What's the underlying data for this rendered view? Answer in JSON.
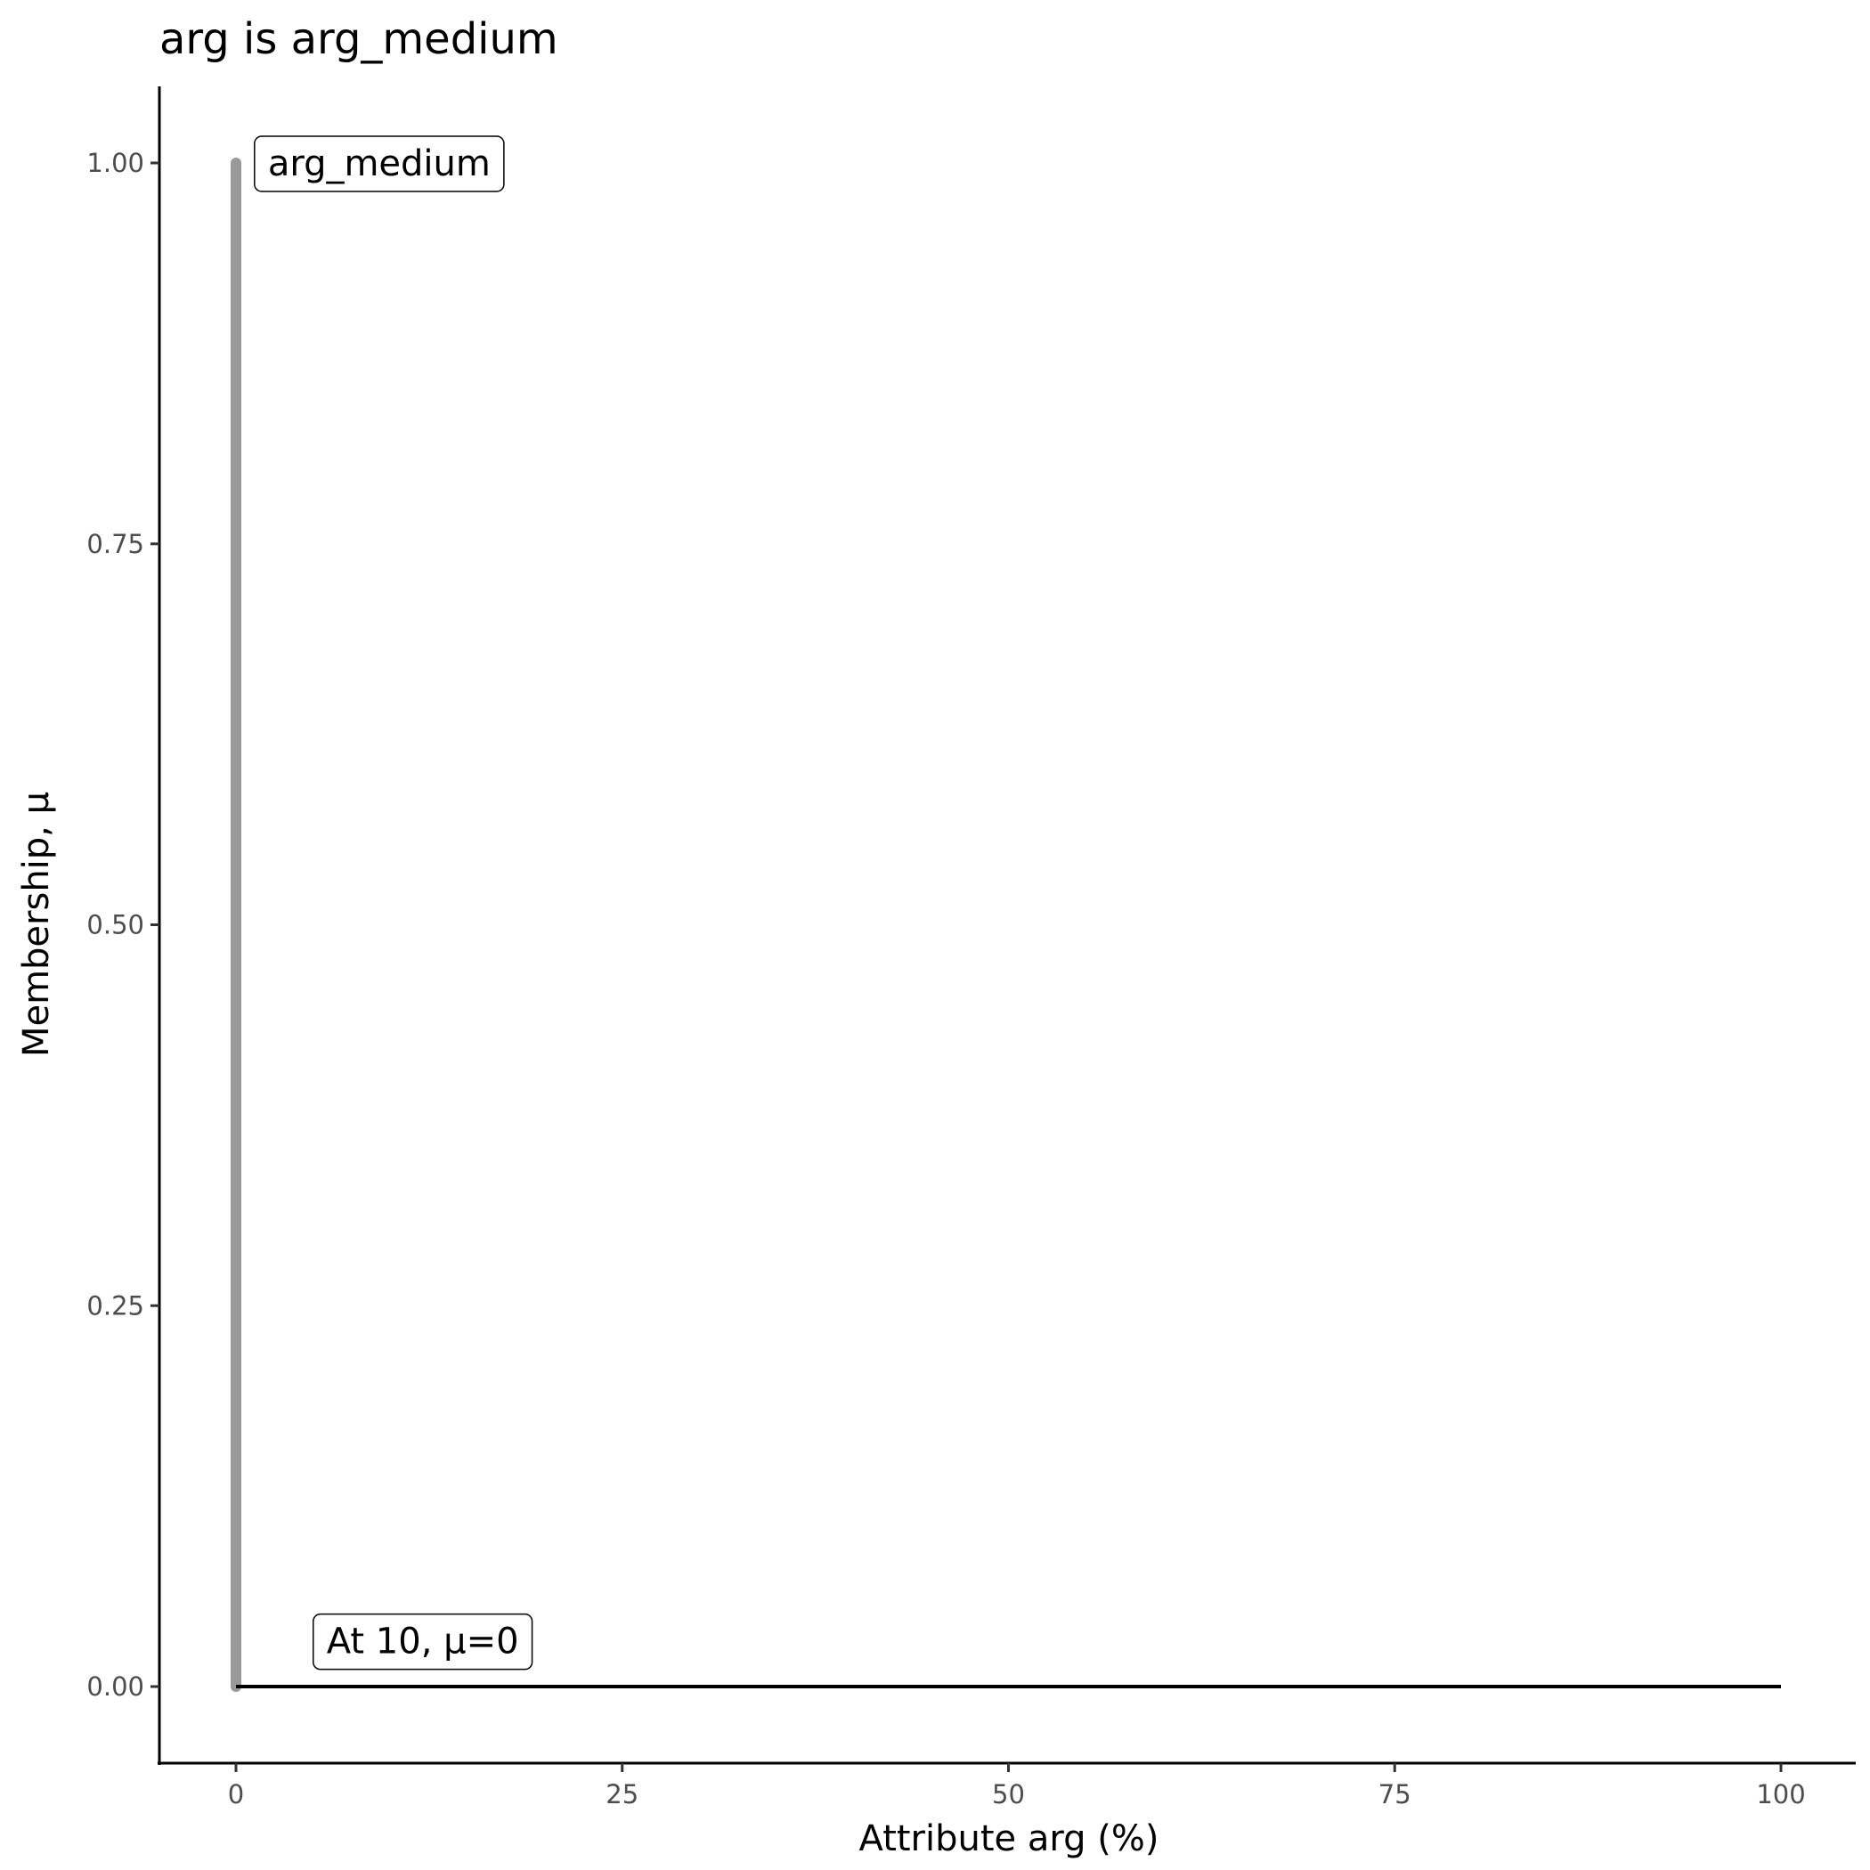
{
  "chart_data": {
    "type": "line",
    "title": "arg is arg_medium",
    "xlabel": "Attribute arg (%)",
    "ylabel": "Membership, μ",
    "xlim": [
      -5,
      105
    ],
    "ylim": [
      -0.05,
      1.05
    ],
    "x_ticks": [
      0,
      25,
      50,
      75,
      100
    ],
    "x_tick_labels": [
      "0",
      "25",
      "50",
      "75",
      "100"
    ],
    "y_ticks": [
      0,
      0.25,
      0.5,
      0.75,
      1
    ],
    "y_tick_labels": [
      "0.00",
      "0.25",
      "0.50",
      "0.75",
      "1.00"
    ],
    "grid": false,
    "series": [
      {
        "color": "#999999",
        "x": [
          0,
          0
        ],
        "y": [
          0,
          1
        ]
      },
      {
        "color": "#000000",
        "x": [
          0,
          100
        ],
        "y": [
          0,
          0
        ]
      }
    ],
    "annotations": [
      {
        "text": "arg_medium",
        "x": 1.2,
        "y": 1.0
      },
      {
        "text": "At 10, μ=0",
        "x": 5,
        "y": 0.03
      }
    ]
  }
}
